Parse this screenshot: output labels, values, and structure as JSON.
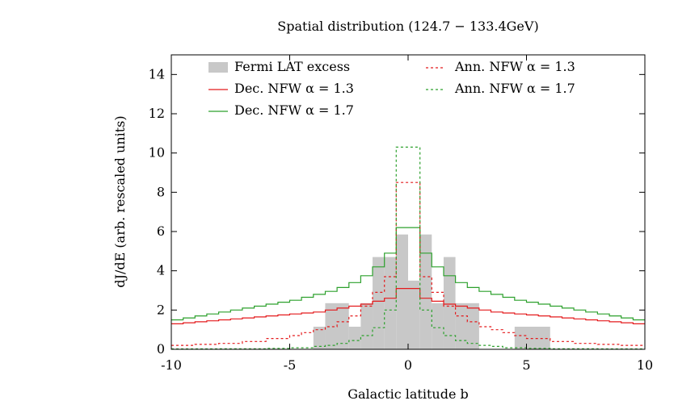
{
  "chart_data": {
    "type": "histogram-step",
    "title": "Spatial distribution (124.7 − 133.4GeV)",
    "xlabel": "Galactic latitude b",
    "ylabel": "dJ/dE (arb. rescaled units)",
    "xlim": [
      -10,
      10
    ],
    "ylim": [
      0,
      15
    ],
    "xticks": [
      -10,
      -5,
      0,
      5,
      10
    ],
    "xtick_labels": [
      "-10",
      "-5",
      "0",
      "5",
      "10"
    ],
    "yticks": [
      0,
      2,
      4,
      6,
      8,
      10,
      12,
      14
    ],
    "ytick_labels": [
      "0",
      "2",
      "4",
      "6",
      "8",
      "10",
      "12",
      "14"
    ],
    "legend": {
      "placement": "top",
      "entries": [
        {
          "label": "Fermi LAT excess",
          "style": "filled-box",
          "color": "#c8c8c8"
        },
        {
          "label": "Dec. NFW α = 1.3",
          "style": "solid",
          "color": "#e41a1c"
        },
        {
          "label": "Dec. NFW α = 1.7",
          "style": "solid",
          "color": "#2ca02c"
        },
        {
          "label": "Ann. NFW α = 1.3",
          "style": "dashed",
          "color": "#e41a1c"
        },
        {
          "label": "Ann. NFW α = 1.7",
          "style": "dashed",
          "color": "#2ca02c"
        }
      ]
    },
    "histogram": {
      "name": "Fermi LAT excess",
      "bins": [
        {
          "x0": -4.0,
          "x1": -3.5,
          "value": 1.15
        },
        {
          "x0": -3.5,
          "x1": -2.5,
          "value": 2.35
        },
        {
          "x0": -2.5,
          "x1": -2.0,
          "value": 1.15
        },
        {
          "x0": -2.0,
          "x1": -1.5,
          "value": 2.35
        },
        {
          "x0": -1.5,
          "x1": -1.0,
          "value": 4.7
        },
        {
          "x0": -1.0,
          "x1": -0.5,
          "value": 4.7
        },
        {
          "x0": -0.5,
          "x1": 0.0,
          "value": 5.85
        },
        {
          "x0": 0.0,
          "x1": 0.5,
          "value": 3.5
        },
        {
          "x0": 0.5,
          "x1": 1.0,
          "value": 5.85
        },
        {
          "x0": 1.0,
          "x1": 1.5,
          "value": 2.35
        },
        {
          "x0": 1.5,
          "x1": 2.0,
          "value": 4.7
        },
        {
          "x0": 2.0,
          "x1": 3.0,
          "value": 2.35
        },
        {
          "x0": 4.5,
          "x1": 6.0,
          "value": 1.15
        }
      ]
    },
    "series": [
      {
        "name": "Dec. NFW α = 1.3",
        "color": "#e41a1c",
        "dash": false,
        "edges": [
          -10,
          -9.5,
          -9,
          -8.5,
          -8,
          -7.5,
          -7,
          -6.5,
          -6,
          -5.5,
          -5,
          -4.5,
          -4,
          -3.5,
          -3,
          -2.5,
          -2,
          -1.5,
          -1,
          -0.5,
          0.5,
          1,
          1.5,
          2,
          2.5,
          3,
          3.5,
          4,
          4.5,
          5,
          5.5,
          6,
          6.5,
          7,
          7.5,
          8,
          8.5,
          9,
          9.5,
          10
        ],
        "values": [
          1.3,
          1.35,
          1.4,
          1.45,
          1.5,
          1.55,
          1.6,
          1.65,
          1.7,
          1.75,
          1.8,
          1.85,
          1.9,
          2.0,
          2.1,
          2.2,
          2.3,
          2.45,
          2.6,
          3.1,
          2.6,
          2.45,
          2.3,
          2.2,
          2.1,
          2.0,
          1.9,
          1.85,
          1.8,
          1.75,
          1.7,
          1.65,
          1.6,
          1.55,
          1.5,
          1.45,
          1.4,
          1.35,
          1.3
        ]
      },
      {
        "name": "Dec. NFW α = 1.7",
        "color": "#2ca02c",
        "dash": false,
        "edges": [
          -10,
          -9.5,
          -9,
          -8.5,
          -8,
          -7.5,
          -7,
          -6.5,
          -6,
          -5.5,
          -5,
          -4.5,
          -4,
          -3.5,
          -3,
          -2.5,
          -2,
          -1.5,
          -1,
          -0.5,
          0.5,
          1,
          1.5,
          2,
          2.5,
          3,
          3.5,
          4,
          4.5,
          5,
          5.5,
          6,
          6.5,
          7,
          7.5,
          8,
          8.5,
          9,
          9.5,
          10
        ],
        "values": [
          1.5,
          1.6,
          1.7,
          1.8,
          1.9,
          2.0,
          2.1,
          2.2,
          2.3,
          2.4,
          2.5,
          2.65,
          2.8,
          2.95,
          3.15,
          3.4,
          3.75,
          4.2,
          4.9,
          6.2,
          4.9,
          4.2,
          3.75,
          3.4,
          3.15,
          2.95,
          2.8,
          2.65,
          2.5,
          2.4,
          2.3,
          2.2,
          2.1,
          2.0,
          1.9,
          1.8,
          1.7,
          1.6,
          1.5
        ]
      },
      {
        "name": "Ann. NFW α = 1.3",
        "color": "#e41a1c",
        "dash": true,
        "edges": [
          -10,
          -9,
          -8,
          -7,
          -6,
          -5,
          -4.5,
          -4,
          -3.5,
          -3,
          -2.5,
          -2,
          -1.5,
          -1,
          -0.5,
          0.5,
          1,
          1.5,
          2,
          2.5,
          3,
          3.5,
          4,
          4.5,
          5,
          6,
          7,
          8,
          9,
          10
        ],
        "values": [
          0.2,
          0.25,
          0.3,
          0.4,
          0.55,
          0.7,
          0.85,
          1.0,
          1.15,
          1.4,
          1.7,
          2.2,
          2.9,
          3.7,
          8.5,
          3.7,
          2.9,
          2.2,
          1.7,
          1.4,
          1.15,
          1.0,
          0.85,
          0.7,
          0.55,
          0.4,
          0.3,
          0.25,
          0.2
        ]
      },
      {
        "name": "Ann. NFW α = 1.7",
        "color": "#2ca02c",
        "dash": true,
        "edges": [
          -10,
          -8,
          -6,
          -5,
          -4,
          -3.5,
          -3,
          -2.5,
          -2,
          -1.5,
          -1,
          -0.5,
          0.5,
          1,
          1.5,
          2,
          2.5,
          3,
          3.5,
          4,
          5,
          6,
          8,
          10
        ],
        "values": [
          0.02,
          0.03,
          0.05,
          0.08,
          0.15,
          0.2,
          0.3,
          0.45,
          0.7,
          1.1,
          2.0,
          10.3,
          2.0,
          1.1,
          0.7,
          0.45,
          0.3,
          0.2,
          0.15,
          0.08,
          0.05,
          0.03,
          0.02
        ]
      }
    ]
  }
}
